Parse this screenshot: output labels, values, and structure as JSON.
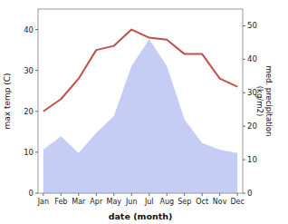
{
  "chart_data": {
    "type": "line",
    "categories": [
      "Jan",
      "Feb",
      "Mar",
      "Apr",
      "May",
      "Jun",
      "Jul",
      "Aug",
      "Sep",
      "Oct",
      "Nov",
      "Dec"
    ],
    "xlabel": "date (month)",
    "ylabel": "max temp (C)",
    "y2label": "med. precipitation\n(kg/m2)",
    "ylim": [
      0,
      45
    ],
    "yticks": [
      0,
      10,
      20,
      30,
      40
    ],
    "y2lim": [
      0,
      55
    ],
    "y2ticks": [
      0,
      10,
      20,
      30,
      40,
      50
    ],
    "grid": false,
    "series": [
      {
        "type": "area",
        "axis": "y2",
        "color": "#c5cdf5",
        "values": [
          13.0,
          17.0,
          12.0,
          18.0,
          23.0,
          38.0,
          46.0,
          38.0,
          22.0,
          15.0,
          13.0,
          12.0
        ]
      },
      {
        "type": "line",
        "color": "#c0504d",
        "values": [
          20.0,
          23.0,
          28.0,
          35.0,
          36.0,
          40.0,
          38.0,
          37.5,
          34.0,
          34.0,
          28.0,
          26.0
        ]
      }
    ]
  }
}
